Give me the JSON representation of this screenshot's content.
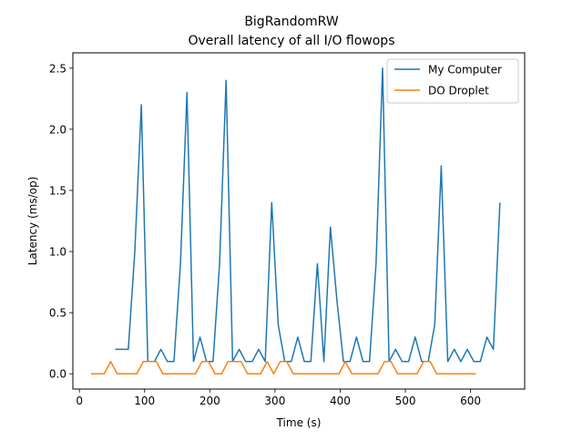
{
  "chart_data": {
    "type": "line",
    "title": "BigRandomRW",
    "subtitle": "Overall latency of all I/O flowops",
    "xlabel": "Time (s)",
    "ylabel": "Latency (ms/op)",
    "xlim": [
      -10,
      683
    ],
    "ylim": [
      -0.125,
      2.625
    ],
    "xticks": [
      0,
      100,
      200,
      300,
      400,
      500,
      600
    ],
    "yticks": [
      0.0,
      0.5,
      1.0,
      1.5,
      2.0,
      2.5
    ],
    "xtick_labels": [
      "0",
      "100",
      "200",
      "300",
      "400",
      "500",
      "600"
    ],
    "ytick_labels": [
      "0.0",
      "0.5",
      "1.0",
      "1.5",
      "2.0",
      "2.5"
    ],
    "grid": false,
    "legend_position": "upper right",
    "series": [
      {
        "name": "My Computer",
        "color": "#1f77b4",
        "x": [
          55,
          65,
          75,
          85,
          95,
          105,
          115,
          125,
          135,
          145,
          155,
          165,
          175,
          185,
          195,
          205,
          215,
          225,
          235,
          245,
          255,
          265,
          275,
          285,
          295,
          305,
          315,
          325,
          335,
          345,
          355,
          365,
          375,
          385,
          395,
          405,
          415,
          425,
          435,
          445,
          455,
          465,
          475,
          485,
          495,
          505,
          515,
          525,
          535,
          545,
          555,
          565,
          575,
          585,
          595,
          605,
          615,
          625,
          635,
          645
        ],
        "y": [
          0.2,
          0.2,
          0.2,
          1.0,
          2.2,
          0.1,
          0.1,
          0.2,
          0.1,
          0.1,
          0.9,
          2.3,
          0.1,
          0.3,
          0.1,
          0.1,
          0.9,
          2.4,
          0.1,
          0.2,
          0.1,
          0.1,
          0.2,
          0.1,
          1.4,
          0.4,
          0.1,
          0.1,
          0.3,
          0.1,
          0.1,
          0.9,
          0.1,
          1.2,
          0.6,
          0.1,
          0.1,
          0.3,
          0.1,
          0.1,
          0.9,
          2.5,
          0.1,
          0.2,
          0.1,
          0.1,
          0.3,
          0.1,
          0.1,
          0.4,
          1.7,
          0.1,
          0.2,
          0.1,
          0.2,
          0.1,
          0.1,
          0.3,
          0.2,
          1.4
        ]
      },
      {
        "name": "DO Droplet",
        "color": "#ff7f0e",
        "x": [
          18,
          28,
          38,
          48,
          58,
          68,
          78,
          88,
          98,
          108,
          118,
          128,
          138,
          148,
          158,
          168,
          178,
          188,
          198,
          208,
          218,
          228,
          238,
          248,
          258,
          268,
          278,
          288,
          298,
          308,
          318,
          328,
          338,
          348,
          358,
          368,
          378,
          388,
          398,
          408,
          418,
          428,
          438,
          448,
          458,
          468,
          478,
          488,
          498,
          508,
          518,
          528,
          538,
          548,
          558,
          568,
          578,
          588,
          598,
          608
        ],
        "y": [
          0.0,
          0.0,
          0.0,
          0.1,
          0.0,
          0.0,
          0.0,
          0.0,
          0.1,
          0.1,
          0.1,
          0.0,
          0.0,
          0.0,
          0.0,
          0.0,
          0.0,
          0.1,
          0.1,
          0.0,
          0.0,
          0.1,
          0.1,
          0.1,
          0.0,
          0.0,
          0.0,
          0.1,
          0.0,
          0.1,
          0.1,
          0.0,
          0.0,
          0.0,
          0.0,
          0.0,
          0.0,
          0.0,
          0.0,
          0.1,
          0.0,
          0.0,
          0.0,
          0.0,
          0.0,
          0.1,
          0.1,
          0.0,
          0.0,
          0.0,
          0.0,
          0.1,
          0.1,
          0.0,
          0.0,
          0.0,
          0.0,
          0.0,
          0.0,
          0.0
        ]
      }
    ]
  }
}
